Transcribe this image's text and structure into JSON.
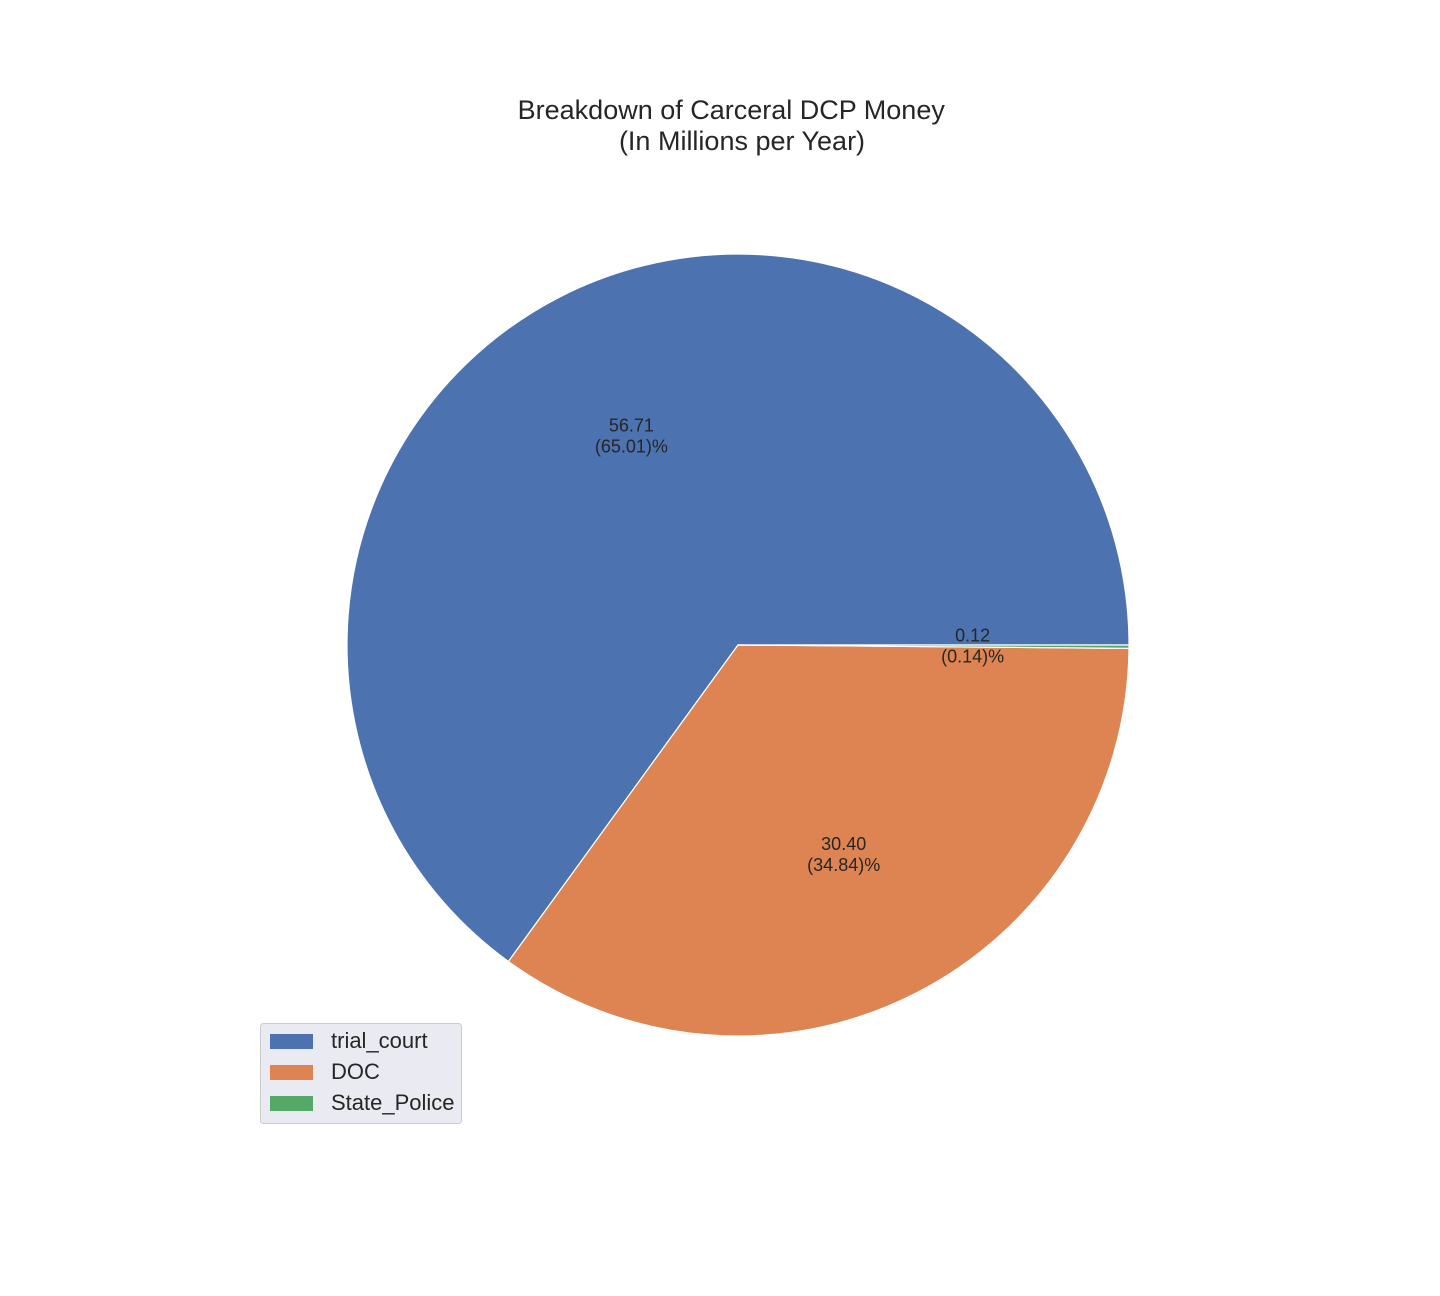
{
  "chart_data": {
    "type": "pie",
    "title_lines": [
      "Breakdown of Carceral DCP Money",
      "(In Millions per Year)"
    ],
    "categories": [
      "trial_court",
      "DOC",
      "State_Police"
    ],
    "values": [
      56.71,
      30.4,
      0.12
    ],
    "slice_labels": [
      [
        "56.71",
        "(65.01)%"
      ],
      [
        "30.40",
        "(34.84)%"
      ],
      [
        "0.12",
        "(0.14)%"
      ]
    ],
    "colors": [
      "#4c72b0",
      "#dd8452",
      "#55a868"
    ],
    "start_angle_deg": 0,
    "direction": "counterclockwise",
    "legend": {
      "placement": "lower-left",
      "entries": [
        "trial_court",
        "DOC",
        "State_Police"
      ]
    }
  }
}
